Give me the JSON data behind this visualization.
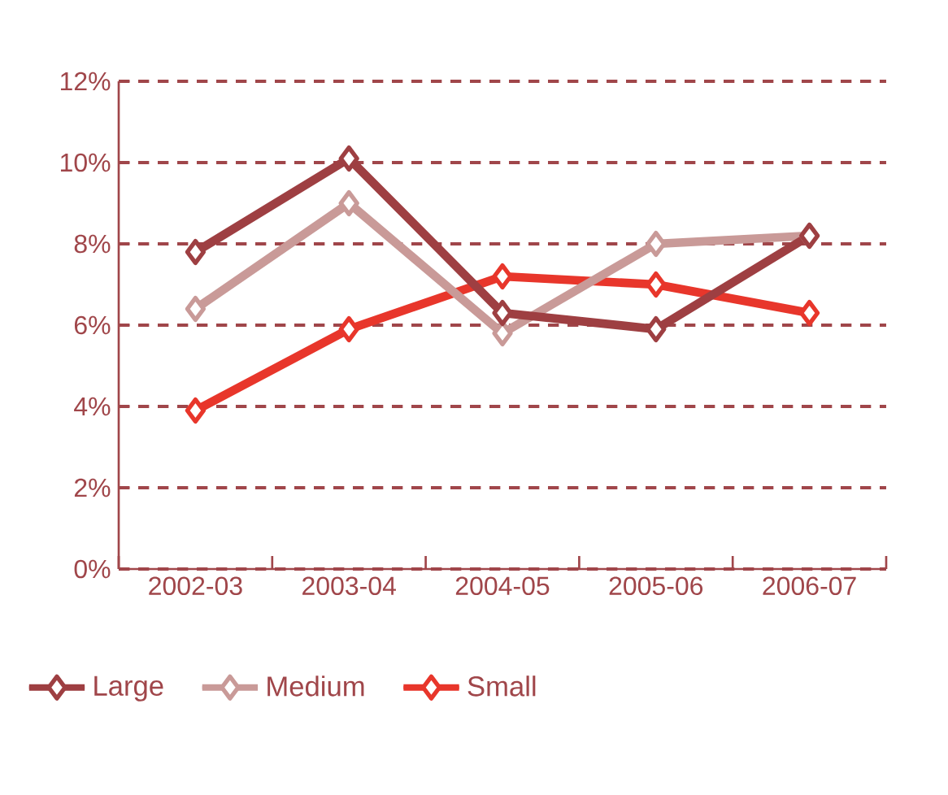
{
  "chart_data": {
    "type": "line",
    "categories": [
      "2002-03",
      "2003-04",
      "2004-05",
      "2005-06",
      "2006-07"
    ],
    "series": [
      {
        "name": "Large",
        "color": "#9e3f42",
        "values": [
          7.8,
          10.1,
          6.3,
          5.9,
          8.2
        ]
      },
      {
        "name": "Medium",
        "color": "#c99a98",
        "values": [
          6.4,
          9.0,
          5.8,
          8.0,
          8.2
        ]
      },
      {
        "name": "Small",
        "color": "#e8362b",
        "values": [
          3.9,
          5.9,
          7.2,
          7.0,
          6.3
        ]
      }
    ],
    "ylim": [
      0,
      12
    ],
    "yticks": [
      {
        "value": 0,
        "label": "0%"
      },
      {
        "value": 2,
        "label": "2%"
      },
      {
        "value": 4,
        "label": "4%"
      },
      {
        "value": 6,
        "label": "6%"
      },
      {
        "value": 8,
        "label": "8%"
      },
      {
        "value": 10,
        "label": "10%"
      },
      {
        "value": 12,
        "label": "12%"
      }
    ],
    "grid": "y",
    "legend": "bottom",
    "marker": "diamond",
    "line_style": "solid"
  }
}
